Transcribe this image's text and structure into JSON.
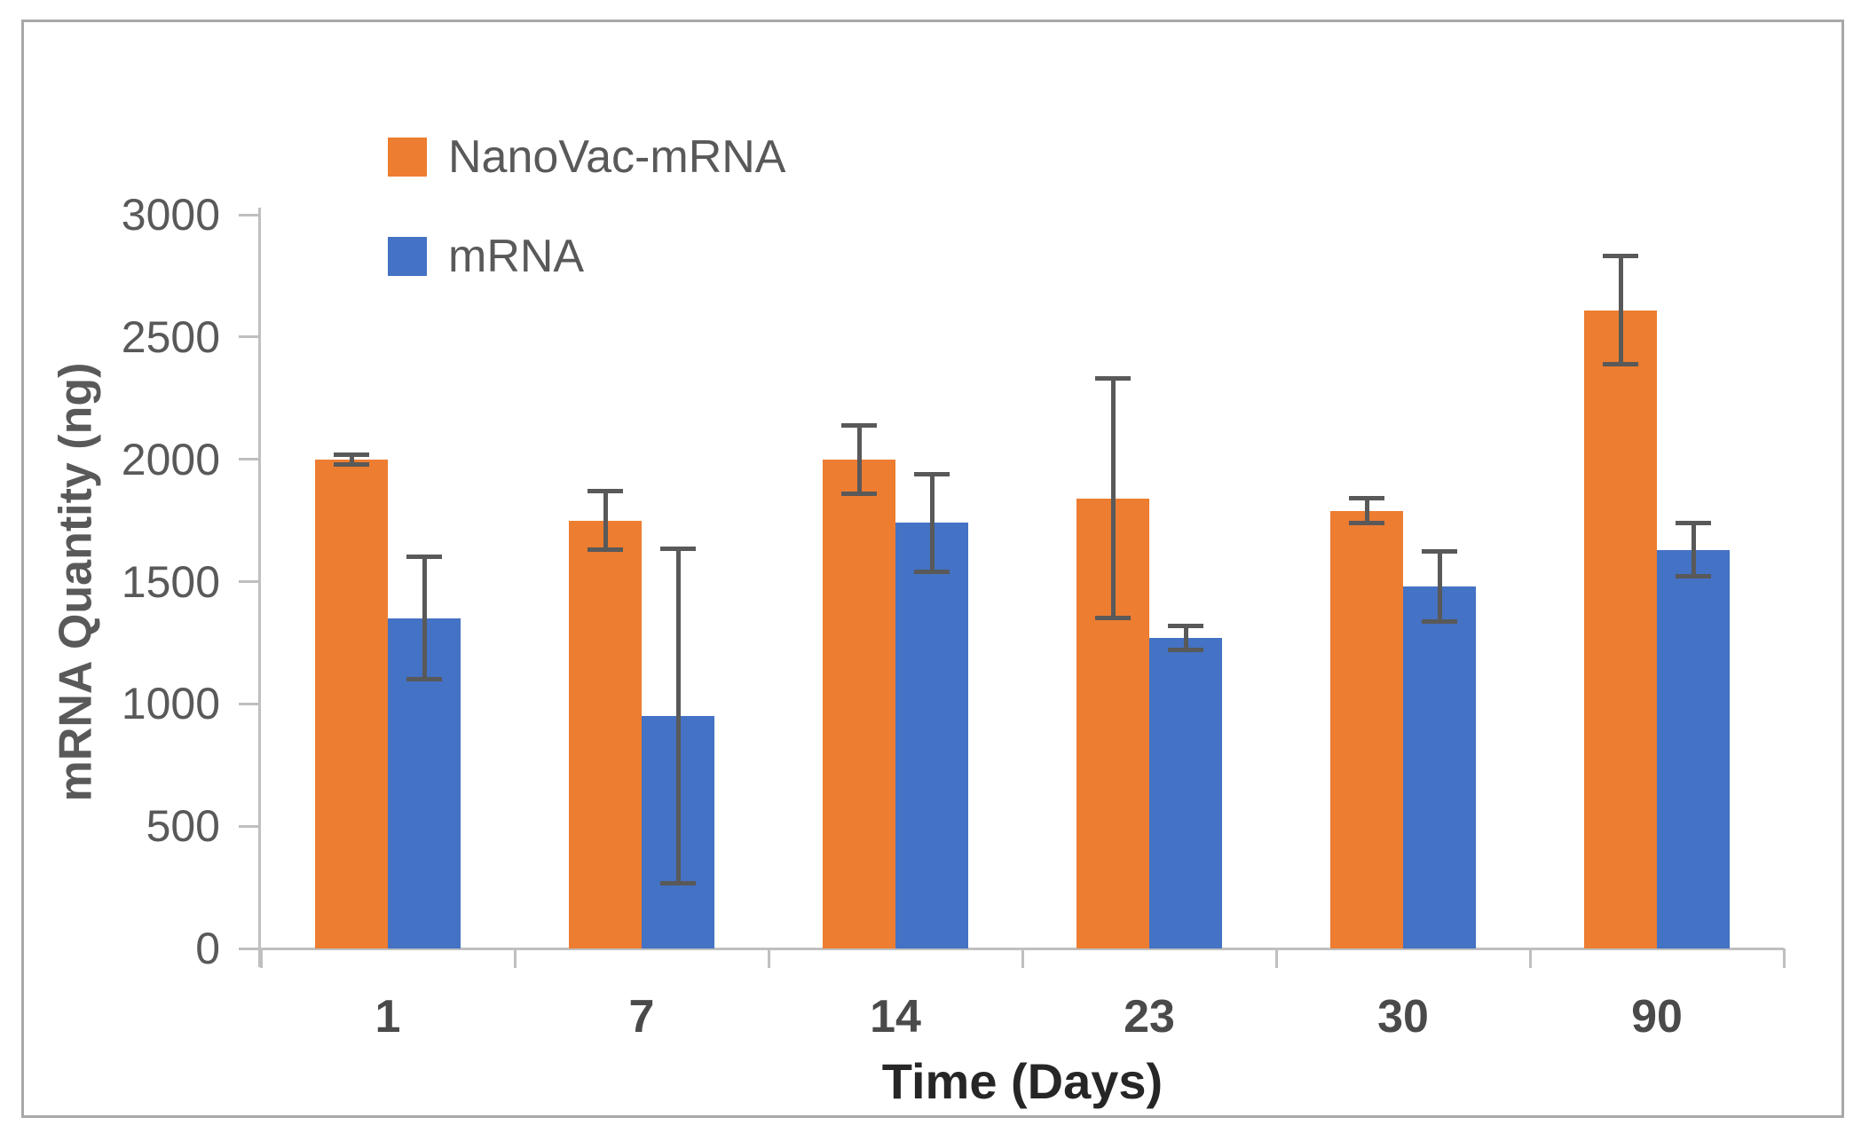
{
  "chart_data": {
    "type": "bar",
    "title": "",
    "categories": [
      "1",
      "7",
      "14",
      "23",
      "30",
      "90"
    ],
    "series": [
      {
        "name": "NanoVac-mRNA",
        "color": "#ED7D31",
        "values": [
          2000,
          1750,
          2000,
          1840,
          1790,
          2610
        ],
        "errors": [
          20,
          120,
          140,
          490,
          50,
          220
        ]
      },
      {
        "name": "mRNA",
        "color": "#4472C4",
        "values": [
          1350,
          950,
          1740,
          1270,
          1480,
          1630
        ],
        "errors": [
          250,
          685,
          200,
          50,
          145,
          110
        ]
      }
    ],
    "xlabel": "Time (Days)",
    "ylabel": "mRNA Quantity (ng)",
    "ylim": [
      0,
      3000
    ],
    "yticks": [
      "0",
      "500",
      "1000",
      "1500",
      "2000",
      "2500",
      "3000"
    ],
    "grid": false,
    "legend_position": "inside-top-left",
    "colors": {
      "error_bar": "#595959",
      "axis_line": "#bfbfbf",
      "tick_text": "#595959",
      "category_text": "#4a4a4a",
      "x_title_text": "#262626",
      "y_title_text": "#595959",
      "frame_border": "#a8a8a8",
      "background": "#ffffff"
    }
  }
}
